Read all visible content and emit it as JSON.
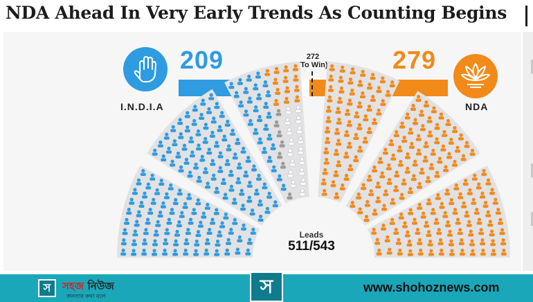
{
  "headline": "NDA Ahead In Very Early Trends As Counting Begins",
  "india": {
    "label": "I.N.D.I.A",
    "count": "209",
    "color": "#2f9be0",
    "icon": "hand-icon"
  },
  "nda": {
    "label": "NDA",
    "count": "279",
    "color": "#f28a1a",
    "icon": "lotus-icon"
  },
  "others_color": "#9a9a9a",
  "win": {
    "line1": "272",
    "line2": "(To Win)"
  },
  "progress": {
    "india_seats": 209,
    "others_seats": 23,
    "gap_seats": 32,
    "nda_seats": 279,
    "total_seats": 543
  },
  "leads": {
    "label": "Leads",
    "value": "511/543"
  },
  "footer": {
    "logo_glyph": "স",
    "brand_part1": "সহজ",
    "brand_part2": "নিউজ",
    "tagline": "জনতার কথা বলে",
    "website": "www.shohoznews.com",
    "color": "#1aa7b9"
  }
}
